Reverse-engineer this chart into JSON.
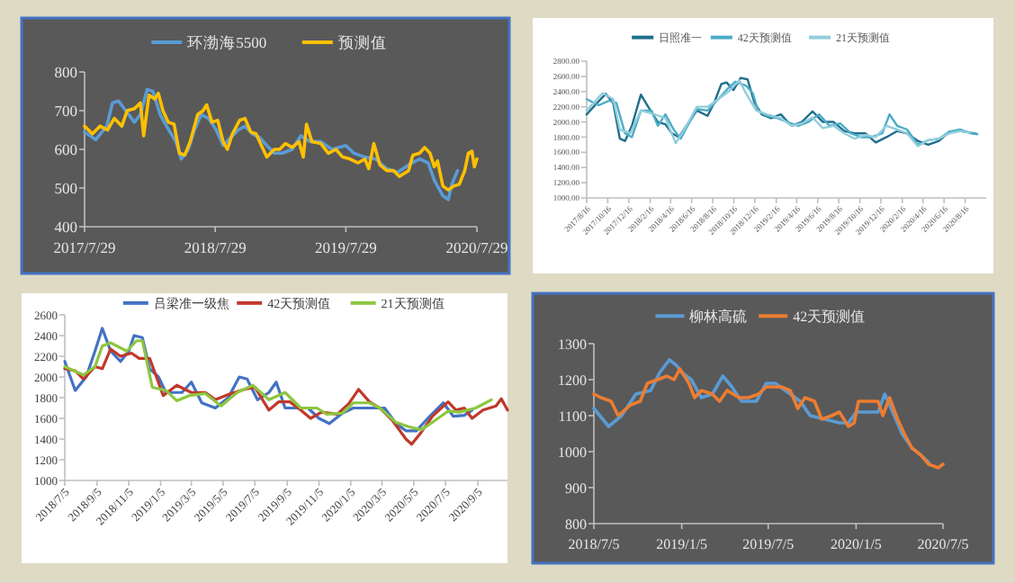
{
  "chart_data": [
    {
      "type": "line",
      "legend": "top",
      "marker": "none",
      "line_style": "solid",
      "xlim": [
        "2017-07-29",
        "2020-07-29"
      ],
      "ylim": [
        400,
        800
      ],
      "xticks": [
        {
          "value": "2017-07-29",
          "label": "2017/7/29"
        },
        {
          "value": "2018-07-29",
          "label": "2018/7/29"
        },
        {
          "value": "2019-07-29",
          "label": "2019/7/29"
        },
        {
          "value": "2020-07-29",
          "label": "2020/7/29"
        }
      ],
      "yticks": [
        400,
        500,
        600,
        700,
        800
      ],
      "series": [
        {
          "name": "环渤海5500",
          "color": "#5b9bd5",
          "x": [
            "2017-07-29",
            "2017-08-29",
            "2017-09-29",
            "2017-10-15",
            "2017-11-01",
            "2017-11-29",
            "2017-12-15",
            "2018-01-01",
            "2018-01-20",
            "2018-02-05",
            "2018-02-25",
            "2018-03-15",
            "2018-04-10",
            "2018-04-25",
            "2018-05-15",
            "2018-06-01",
            "2018-06-20",
            "2018-07-10",
            "2018-08-01",
            "2018-08-20",
            "2018-09-10",
            "2018-10-01",
            "2018-10-20",
            "2018-11-10",
            "2018-12-01",
            "2018-12-20",
            "2019-01-10",
            "2019-02-01",
            "2019-03-01",
            "2019-03-25",
            "2019-04-20",
            "2019-05-20",
            "2019-06-20",
            "2019-07-29",
            "2019-08-20",
            "2019-09-20",
            "2019-10-20",
            "2019-11-20",
            "2019-12-20",
            "2020-01-20",
            "2020-02-20",
            "2020-03-15",
            "2020-04-01",
            "2020-04-25",
            "2020-05-10",
            "2020-05-20",
            "2020-06-05"
          ],
          "values": [
            645,
            625,
            660,
            720,
            725,
            690,
            670,
            690,
            755,
            750,
            690,
            660,
            620,
            575,
            600,
            650,
            690,
            680,
            650,
            610,
            630,
            650,
            660,
            640,
            630,
            610,
            590,
            590,
            600,
            635,
            620,
            620,
            600,
            610,
            590,
            580,
            575,
            550,
            540,
            560,
            575,
            565,
            520,
            480,
            470,
            510,
            545
          ]
        },
        {
          "name": "预测值",
          "color": "#ffc000",
          "x": [
            "2017-07-29",
            "2017-08-20",
            "2017-09-10",
            "2017-10-01",
            "2017-10-20",
            "2017-11-10",
            "2017-11-25",
            "2017-12-15",
            "2018-01-01",
            "2018-01-10",
            "2018-01-25",
            "2018-02-10",
            "2018-02-20",
            "2018-03-05",
            "2018-03-20",
            "2018-04-05",
            "2018-04-20",
            "2018-05-05",
            "2018-05-20",
            "2018-06-10",
            "2018-06-25",
            "2018-07-05",
            "2018-07-20",
            "2018-08-05",
            "2018-08-20",
            "2018-09-01",
            "2018-09-15",
            "2018-10-05",
            "2018-10-20",
            "2018-11-05",
            "2018-11-20",
            "2018-12-05",
            "2018-12-20",
            "2019-01-10",
            "2019-01-25",
            "2019-02-10",
            "2019-03-01",
            "2019-03-20",
            "2019-04-01",
            "2019-04-10",
            "2019-04-25",
            "2019-05-20",
            "2019-06-10",
            "2019-07-01",
            "2019-07-20",
            "2019-08-10",
            "2019-09-01",
            "2019-09-20",
            "2019-10-01",
            "2019-10-15",
            "2019-11-01",
            "2019-11-20",
            "2019-12-10",
            "2019-12-25",
            "2020-01-20",
            "2020-02-01",
            "2020-02-20",
            "2020-03-05",
            "2020-03-20",
            "2020-04-01",
            "2020-04-10",
            "2020-04-25",
            "2020-05-10",
            "2020-05-25",
            "2020-06-10",
            "2020-06-25",
            "2020-07-05",
            "2020-07-15",
            "2020-07-22",
            "2020-07-29"
          ],
          "values": [
            660,
            640,
            660,
            650,
            680,
            660,
            700,
            705,
            720,
            635,
            740,
            730,
            745,
            700,
            670,
            665,
            590,
            585,
            620,
            690,
            700,
            715,
            670,
            675,
            620,
            600,
            640,
            675,
            680,
            645,
            640,
            610,
            580,
            600,
            600,
            615,
            605,
            620,
            580,
            665,
            620,
            615,
            590,
            600,
            580,
            575,
            565,
            575,
            550,
            615,
            560,
            545,
            545,
            530,
            545,
            585,
            590,
            605,
            590,
            555,
            570,
            505,
            495,
            505,
            510,
            545,
            590,
            595,
            555,
            575
          ]
        }
      ]
    },
    {
      "type": "line",
      "legend": "top",
      "marker": "none",
      "line_style": "solid",
      "xlim": [
        "2017-08-16",
        "2020-10-16"
      ],
      "ylim": [
        1000,
        2800
      ],
      "xticks": [
        {
          "value": "2017-08-16",
          "label": "2017/8/16"
        },
        {
          "value": "2017-10-16",
          "label": "2017/10/16"
        },
        {
          "value": "2017-12-16",
          "label": "2017/12/16"
        },
        {
          "value": "2018-02-16",
          "label": "2018/2/16"
        },
        {
          "value": "2018-04-16",
          "label": "2018/4/16"
        },
        {
          "value": "2018-06-16",
          "label": "2018/6/16"
        },
        {
          "value": "2018-08-16",
          "label": "2018/8/16"
        },
        {
          "value": "2018-10-16",
          "label": "2018/10/16"
        },
        {
          "value": "2018-12-16",
          "label": "2018/12/16"
        },
        {
          "value": "2019-02-16",
          "label": "2019/2/16"
        },
        {
          "value": "2019-04-16",
          "label": "2019/4/16"
        },
        {
          "value": "2019-06-16",
          "label": "2019/6/16"
        },
        {
          "value": "2019-08-16",
          "label": "2019/8/16"
        },
        {
          "value": "2019-10-16",
          "label": "2019/10/16"
        },
        {
          "value": "2019-12-16",
          "label": "2019/12/16"
        },
        {
          "value": "2020-02-16",
          "label": "2020/2/16"
        },
        {
          "value": "2020-04-16",
          "label": "2020/4/16"
        },
        {
          "value": "2020-06-16",
          "label": "2020/6/16"
        },
        {
          "value": "2020-08-16",
          "label": "2020/8/16"
        }
      ],
      "yticks": [
        {
          "value": 1000,
          "label": "1000.00"
        },
        {
          "value": 1200,
          "label": "1200.00"
        },
        {
          "value": 1400,
          "label": "1400.00"
        },
        {
          "value": 1600,
          "label": "1600.00"
        },
        {
          "value": 1800,
          "label": "1800.00"
        },
        {
          "value": 2000,
          "label": "2000.00"
        },
        {
          "value": 2200,
          "label": "2200.00"
        },
        {
          "value": 2400,
          "label": "2400.00"
        },
        {
          "value": 2600,
          "label": "2600.00"
        },
        {
          "value": 2800,
          "label": "2800.00"
        }
      ],
      "series": [
        {
          "name": "日照准一",
          "color": "#1f6e8c",
          "x": [
            "2017-08-16",
            "2017-09-15",
            "2017-10-10",
            "2017-11-01",
            "2017-11-20",
            "2017-12-05",
            "2017-12-25",
            "2018-01-20",
            "2018-02-10",
            "2018-03-10",
            "2018-04-01",
            "2018-04-20",
            "2018-05-10",
            "2018-06-01",
            "2018-07-01",
            "2018-08-01",
            "2018-08-20",
            "2018-09-10",
            "2018-09-25",
            "2018-10-15",
            "2018-11-05",
            "2018-11-25",
            "2018-12-15",
            "2019-01-05",
            "2019-02-01",
            "2019-03-01",
            "2019-04-01",
            "2019-05-01",
            "2019-06-01",
            "2019-07-01",
            "2019-08-01",
            "2019-09-01",
            "2019-10-01",
            "2019-11-01",
            "2019-12-01",
            "2020-01-01",
            "2020-02-01",
            "2020-03-01",
            "2020-04-01",
            "2020-05-01",
            "2020-06-01",
            "2020-07-01",
            "2020-08-01",
            "2020-09-01",
            "2020-09-20"
          ],
          "values": [
            2100,
            2250,
            2370,
            2250,
            1780,
            1750,
            1950,
            2360,
            2200,
            2000,
            1970,
            1850,
            1800,
            1950,
            2150,
            2080,
            2250,
            2500,
            2520,
            2420,
            2580,
            2560,
            2250,
            2100,
            2050,
            2100,
            1950,
            2000,
            2140,
            2000,
            2000,
            1880,
            1850,
            1850,
            1730,
            1800,
            1880,
            1850,
            1750,
            1700,
            1750,
            1870,
            1880,
            1860,
            1840
          ]
        },
        {
          "name": "42天预测值",
          "color": "#4bacc6",
          "x": [
            "2017-08-16",
            "2017-09-20",
            "2017-10-20",
            "2017-11-10",
            "2017-12-05",
            "2017-12-25",
            "2018-01-20",
            "2018-02-20",
            "2018-03-10",
            "2018-04-01",
            "2018-04-25",
            "2018-05-15",
            "2018-06-10",
            "2018-07-01",
            "2018-08-01",
            "2018-09-01",
            "2018-10-01",
            "2018-10-20",
            "2018-11-20",
            "2018-12-10",
            "2018-12-25",
            "2019-01-20",
            "2019-02-20",
            "2019-03-20",
            "2019-04-20",
            "2019-05-20",
            "2019-06-20",
            "2019-07-20",
            "2019-08-20",
            "2019-09-20",
            "2019-10-20",
            "2019-11-20",
            "2019-12-20",
            "2020-01-10",
            "2020-02-01",
            "2020-03-01",
            "2020-04-01",
            "2020-05-01",
            "2020-06-01",
            "2020-07-01",
            "2020-08-01",
            "2020-09-01",
            "2020-09-20"
          ],
          "values": [
            2300,
            2220,
            2280,
            2250,
            1850,
            1800,
            2150,
            2150,
            1950,
            2100,
            1900,
            1780,
            2000,
            2170,
            2150,
            2300,
            2450,
            2530,
            2480,
            2380,
            2150,
            2080,
            2050,
            2000,
            1950,
            2000,
            2100,
            1950,
            1980,
            1850,
            1800,
            1800,
            1850,
            2100,
            1950,
            1900,
            1700,
            1760,
            1780,
            1870,
            1900,
            1850,
            1840
          ]
        },
        {
          "name": "21天预测值",
          "color": "#92cddc",
          "x": [
            "2017-08-16",
            "2017-10-01",
            "2017-11-01",
            "2017-11-20",
            "2017-12-20",
            "2018-01-20",
            "2018-03-01",
            "2018-04-01",
            "2018-05-01",
            "2018-06-01",
            "2018-07-01",
            "2018-08-01",
            "2018-09-01",
            "2018-10-01",
            "2018-11-01",
            "2018-11-20",
            "2018-12-20",
            "2019-01-20",
            "2019-03-01",
            "2019-04-01",
            "2019-05-01",
            "2019-06-01",
            "2019-07-01",
            "2019-08-01",
            "2019-09-01",
            "2019-10-01",
            "2019-11-01",
            "2019-12-01",
            "2020-01-01",
            "2020-02-01",
            "2020-03-01",
            "2020-04-01",
            "2020-05-01",
            "2020-06-01",
            "2020-07-01",
            "2020-08-01",
            "2020-09-01"
          ],
          "values": [
            2150,
            2380,
            2300,
            1900,
            1850,
            2150,
            2100,
            2050,
            1720,
            1950,
            2200,
            2200,
            2300,
            2400,
            2550,
            2380,
            2150,
            2100,
            2050,
            1950,
            1980,
            2060,
            1920,
            1950,
            1850,
            1780,
            1830,
            1800,
            1950,
            1900,
            1850,
            1680,
            1760,
            1780,
            1850,
            1880,
            1860
          ]
        }
      ]
    },
    {
      "type": "line",
      "legend": "top",
      "marker": "none",
      "line_style": "solid",
      "xlim": [
        "2018-07-05",
        "2020-11-01"
      ],
      "ylim": [
        1000,
        2600
      ],
      "xticks": [
        {
          "value": "2018-07-05",
          "label": "2018/7/5"
        },
        {
          "value": "2018-09-05",
          "label": "2018/9/5"
        },
        {
          "value": "2018-11-05",
          "label": "2018/11/5"
        },
        {
          "value": "2019-01-05",
          "label": "2019/1/5"
        },
        {
          "value": "2019-03-05",
          "label": "2019/3/5"
        },
        {
          "value": "2019-05-05",
          "label": "2019/5/5"
        },
        {
          "value": "2019-07-05",
          "label": "2019/7/5"
        },
        {
          "value": "2019-09-05",
          "label": "2019/9/5"
        },
        {
          "value": "2019-11-05",
          "label": "2019/11/5"
        },
        {
          "value": "2020-01-05",
          "label": "2020/1/5"
        },
        {
          "value": "2020-03-05",
          "label": "2020/3/5"
        },
        {
          "value": "2020-05-05",
          "label": "2020/5/5"
        },
        {
          "value": "2020-07-05",
          "label": "2020/7/5"
        },
        {
          "value": "2020-09-05",
          "label": "2020/9/5"
        }
      ],
      "yticks": [
        1000,
        1200,
        1400,
        1600,
        1800,
        2000,
        2200,
        2400,
        2600
      ],
      "series": [
        {
          "name": "吕梁准一级焦",
          "color": "#4472c4",
          "x": [
            "2018-07-05",
            "2018-07-25",
            "2018-08-15",
            "2018-09-01",
            "2018-09-15",
            "2018-10-01",
            "2018-10-20",
            "2018-11-05",
            "2018-11-15",
            "2018-12-01",
            "2018-12-15",
            "2019-01-01",
            "2019-01-15",
            "2019-02-15",
            "2019-03-05",
            "2019-03-25",
            "2019-04-20",
            "2019-05-15",
            "2019-06-05",
            "2019-06-20",
            "2019-07-10",
            "2019-08-01",
            "2019-08-15",
            "2019-09-01",
            "2019-10-15",
            "2019-11-05",
            "2019-11-25",
            "2019-12-20",
            "2020-01-10",
            "2020-02-10",
            "2020-03-10",
            "2020-04-01",
            "2020-04-20",
            "2020-05-10",
            "2020-06-01",
            "2020-07-01",
            "2020-07-20",
            "2020-08-10",
            "2020-08-25"
          ],
          "values": [
            2150,
            1870,
            2000,
            2250,
            2470,
            2250,
            2150,
            2250,
            2400,
            2380,
            2080,
            2000,
            1850,
            1850,
            1950,
            1750,
            1700,
            1800,
            2000,
            1980,
            1780,
            1850,
            1950,
            1700,
            1700,
            1600,
            1550,
            1650,
            1700,
            1700,
            1700,
            1550,
            1480,
            1480,
            1600,
            1750,
            1620,
            1630,
            1680
          ]
        },
        {
          "name": "42天预测值",
          "color": "#c0392b",
          "x": [
            "2018-07-05",
            "2018-07-25",
            "2018-08-10",
            "2018-09-01",
            "2018-09-15",
            "2018-10-01",
            "2018-10-20",
            "2018-11-10",
            "2018-11-25",
            "2018-12-15",
            "2019-01-10",
            "2019-02-05",
            "2019-03-05",
            "2019-04-01",
            "2019-04-20",
            "2019-05-15",
            "2019-06-15",
            "2019-07-05",
            "2019-08-01",
            "2019-08-20",
            "2019-09-10",
            "2019-10-01",
            "2019-10-20",
            "2019-11-10",
            "2019-12-10",
            "2020-01-01",
            "2020-01-20",
            "2020-02-10",
            "2020-03-01",
            "2020-03-25",
            "2020-04-20",
            "2020-05-01",
            "2020-05-20",
            "2020-06-10",
            "2020-07-10",
            "2020-07-25",
            "2020-08-10",
            "2020-08-25",
            "2020-09-15",
            "2020-10-10",
            "2020-10-20",
            "2020-11-01"
          ],
          "values": [
            2080,
            2060,
            1980,
            2100,
            2080,
            2270,
            2200,
            2230,
            2180,
            2180,
            1820,
            1920,
            1850,
            1850,
            1780,
            1830,
            1880,
            1900,
            1680,
            1760,
            1760,
            1680,
            1600,
            1660,
            1640,
            1740,
            1880,
            1760,
            1700,
            1580,
            1400,
            1350,
            1470,
            1620,
            1760,
            1680,
            1700,
            1600,
            1680,
            1720,
            1790,
            1680
          ]
        },
        {
          "name": "21天预测值",
          "color": "#8dc63f",
          "x": [
            "2018-07-05",
            "2018-08-10",
            "2018-09-01",
            "2018-09-15",
            "2018-10-01",
            "2018-11-01",
            "2018-11-20",
            "2018-12-01",
            "2018-12-20",
            "2019-01-15",
            "2019-02-05",
            "2019-03-01",
            "2019-04-01",
            "2019-05-01",
            "2019-06-01",
            "2019-07-01",
            "2019-08-01",
            "2019-09-01",
            "2019-10-01",
            "2019-11-01",
            "2019-11-20",
            "2019-12-20",
            "2020-01-10",
            "2020-02-10",
            "2020-03-01",
            "2020-04-01",
            "2020-04-25",
            "2020-05-20",
            "2020-06-15",
            "2020-07-10",
            "2020-08-01",
            "2020-09-01",
            "2020-10-01"
          ],
          "values": [
            2100,
            2020,
            2100,
            2300,
            2330,
            2250,
            2350,
            2350,
            1900,
            1870,
            1770,
            1820,
            1840,
            1720,
            1850,
            1920,
            1780,
            1850,
            1700,
            1700,
            1640,
            1650,
            1750,
            1750,
            1700,
            1560,
            1520,
            1490,
            1580,
            1670,
            1660,
            1700,
            1780
          ]
        }
      ]
    },
    {
      "type": "line",
      "legend": "top",
      "marker": "none",
      "line_style": "solid",
      "xlim": [
        "2018-07-05",
        "2020-07-05"
      ],
      "ylim": [
        800,
        1300
      ],
      "xticks": [
        {
          "value": "2018-07-05",
          "label": "2018/7/5"
        },
        {
          "value": "2019-01-05",
          "label": "2019/1/5"
        },
        {
          "value": "2019-07-05",
          "label": "2019/7/5"
        },
        {
          "value": "2020-01-05",
          "label": "2020/1/5"
        },
        {
          "value": "2020-07-05",
          "label": "2020/7/5"
        }
      ],
      "yticks": [
        800,
        900,
        1000,
        1100,
        1200,
        1300
      ],
      "series": [
        {
          "name": "柳林高硫",
          "color": "#5b9bd5",
          "x": [
            "2018-07-05",
            "2018-08-05",
            "2018-09-01",
            "2018-10-01",
            "2018-11-01",
            "2018-11-20",
            "2018-12-10",
            "2018-12-25",
            "2019-01-05",
            "2019-01-25",
            "2019-02-15",
            "2019-03-10",
            "2019-04-01",
            "2019-04-20",
            "2019-05-10",
            "2019-06-10",
            "2019-07-01",
            "2019-07-20",
            "2019-08-20",
            "2019-09-10",
            "2019-10-01",
            "2019-11-01",
            "2019-12-01",
            "2019-12-20",
            "2020-01-05",
            "2020-02-01",
            "2020-02-20",
            "2020-03-05",
            "2020-03-25",
            "2020-04-10",
            "2020-05-01",
            "2020-05-20",
            "2020-06-05"
          ],
          "values": [
            1120,
            1070,
            1100,
            1160,
            1170,
            1220,
            1255,
            1240,
            1220,
            1200,
            1150,
            1160,
            1210,
            1180,
            1140,
            1140,
            1190,
            1190,
            1160,
            1140,
            1100,
            1090,
            1080,
            1080,
            1110,
            1110,
            1110,
            1160,
            1100,
            1050,
            1010,
            990,
            970
          ]
        },
        {
          "name": "42天预测值",
          "color": "#ed7d31",
          "x": [
            "2018-07-05",
            "2018-07-20",
            "2018-08-10",
            "2018-08-25",
            "2018-09-20",
            "2018-10-10",
            "2018-10-25",
            "2018-11-15",
            "2018-12-05",
            "2018-12-20",
            "2019-01-01",
            "2019-01-20",
            "2019-02-01",
            "2019-02-15",
            "2019-03-10",
            "2019-03-25",
            "2019-04-10",
            "2019-05-05",
            "2019-05-25",
            "2019-06-15",
            "2019-07-01",
            "2019-08-01",
            "2019-08-20",
            "2019-09-05",
            "2019-09-20",
            "2019-10-10",
            "2019-10-25",
            "2019-11-15",
            "2019-12-01",
            "2019-12-20",
            "2020-01-01",
            "2020-01-10",
            "2020-02-01",
            "2020-02-20",
            "2020-03-01",
            "2020-03-15",
            "2020-04-01",
            "2020-04-15",
            "2020-05-01",
            "2020-05-20",
            "2020-06-05",
            "2020-06-25",
            "2020-07-05"
          ],
          "values": [
            1160,
            1150,
            1140,
            1100,
            1130,
            1140,
            1190,
            1200,
            1210,
            1200,
            1230,
            1190,
            1150,
            1170,
            1160,
            1140,
            1170,
            1150,
            1150,
            1160,
            1180,
            1180,
            1170,
            1120,
            1150,
            1140,
            1090,
            1100,
            1110,
            1070,
            1080,
            1140,
            1140,
            1140,
            1100,
            1150,
            1090,
            1050,
            1010,
            990,
            965,
            955,
            965
          ]
        }
      ]
    }
  ]
}
